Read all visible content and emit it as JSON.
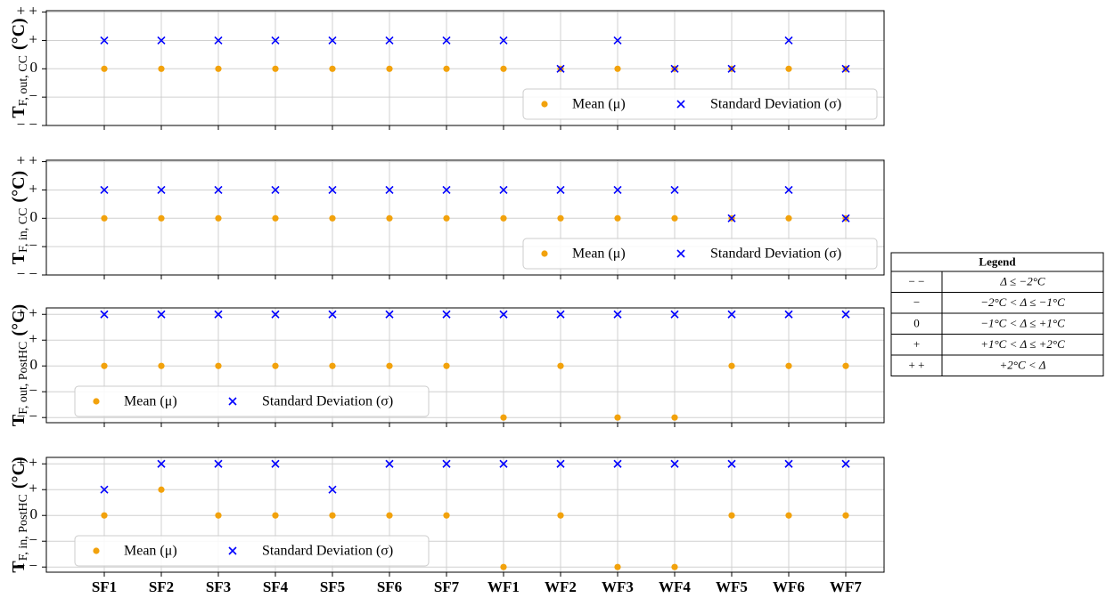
{
  "chart_data": [
    {
      "type": "scatter",
      "ylabel": {
        "main": "T",
        "sub": "F, out, CC",
        "unit": "(°C)"
      },
      "ylim": [
        -2,
        2.05
      ],
      "yticks": [
        {
          "value": -2,
          "label": "− −"
        },
        {
          "value": -1,
          "label": "−"
        },
        0,
        {
          "value": 1,
          "label": "+"
        },
        {
          "value": 2,
          "label": "+ +"
        }
      ],
      "grid": true,
      "legend_loc": "lower right",
      "series": [
        {
          "name": "Mean (μ)",
          "color": "#f2a20c",
          "marker": "o",
          "values": [
            0,
            0,
            0,
            0,
            0,
            0,
            0,
            0,
            0,
            0,
            0,
            0,
            0,
            0
          ]
        },
        {
          "name": "Standard Deviation (σ)",
          "color": "#0000ff",
          "marker": "x",
          "values": [
            1,
            1,
            1,
            1,
            1,
            1,
            1,
            1,
            0,
            1,
            0,
            0,
            1,
            0
          ]
        }
      ]
    },
    {
      "type": "scatter",
      "ylabel": {
        "main": "T",
        "sub": "F, in, CC",
        "unit": "(°C)"
      },
      "ylim": [
        -2,
        2.05
      ],
      "yticks": [
        {
          "value": -2,
          "label": "− −"
        },
        {
          "value": -1,
          "label": "−"
        },
        0,
        {
          "value": 1,
          "label": "+"
        },
        {
          "value": 2,
          "label": "+ +"
        }
      ],
      "grid": true,
      "legend_loc": "lower right",
      "series": [
        {
          "name": "Mean (μ)",
          "color": "#f2a20c",
          "marker": "o",
          "values": [
            0,
            0,
            0,
            0,
            0,
            0,
            0,
            0,
            0,
            0,
            0,
            0,
            0,
            0
          ]
        },
        {
          "name": "Standard Deviation (σ)",
          "color": "#0000ff",
          "marker": "x",
          "values": [
            1,
            1,
            1,
            1,
            1,
            1,
            1,
            1,
            1,
            1,
            1,
            0,
            1,
            0
          ]
        }
      ]
    },
    {
      "type": "scatter",
      "ylabel": {
        "main": "T",
        "sub": "F, out, PostHC",
        "unit": "(°C)"
      },
      "ylim": [
        -2.2,
        2.25
      ],
      "yticks": [
        {
          "value": -2,
          "label": "− −"
        },
        {
          "value": -1,
          "label": "−"
        },
        0,
        {
          "value": 1,
          "label": "+"
        },
        {
          "value": 2,
          "label": "+ +"
        }
      ],
      "grid": true,
      "legend_loc": "lower left",
      "series": [
        {
          "name": "Mean (μ)",
          "color": "#f2a20c",
          "marker": "o",
          "values": [
            0,
            0,
            0,
            0,
            0,
            0,
            0,
            -2,
            0,
            -2,
            -2,
            0,
            0,
            0
          ]
        },
        {
          "name": "Standard Deviation (σ)",
          "color": "#0000ff",
          "marker": "x",
          "values": [
            2,
            2,
            2,
            2,
            2,
            2,
            2,
            2,
            2,
            2,
            2,
            2,
            2,
            2
          ]
        }
      ]
    },
    {
      "type": "scatter",
      "ylabel": {
        "main": "T",
        "sub": "F, in, PostHC",
        "unit": "(°C)"
      },
      "categories": [
        "SF1",
        "SF2",
        "SF3",
        "SF4",
        "SF5",
        "SF6",
        "SF7",
        "WF1",
        "WF2",
        "WF3",
        "WF4",
        "WF5",
        "WF6",
        "WF7"
      ],
      "ylim": [
        -2.2,
        2.25
      ],
      "yticks": [
        {
          "value": -2,
          "label": "− −"
        },
        {
          "value": -1,
          "label": "−"
        },
        0,
        {
          "value": 1,
          "label": "+"
        },
        {
          "value": 2,
          "label": "+ +"
        }
      ],
      "grid": true,
      "legend_loc": "lower left",
      "series": [
        {
          "name": "Mean (μ)",
          "color": "#f2a20c",
          "marker": "o",
          "values": [
            0,
            1,
            0,
            0,
            0,
            0,
            0,
            -2,
            0,
            -2,
            -2,
            0,
            0,
            0
          ]
        },
        {
          "name": "Standard Deviation (σ)",
          "color": "#0000ff",
          "marker": "x",
          "values": [
            1,
            2,
            2,
            2,
            1,
            2,
            2,
            2,
            2,
            2,
            2,
            2,
            2,
            2
          ]
        }
      ]
    }
  ],
  "legend_table": {
    "title": "Legend",
    "rows": [
      [
        "− −",
        "Δ ≤ −2°C"
      ],
      [
        "−",
        "−2°C < Δ ≤ −1°C"
      ],
      [
        "0",
        "−1°C < Δ ≤ +1°C"
      ],
      [
        "+",
        "+1°C < Δ ≤ +2°C"
      ],
      [
        "+ +",
        "+2°C < Δ"
      ]
    ]
  }
}
